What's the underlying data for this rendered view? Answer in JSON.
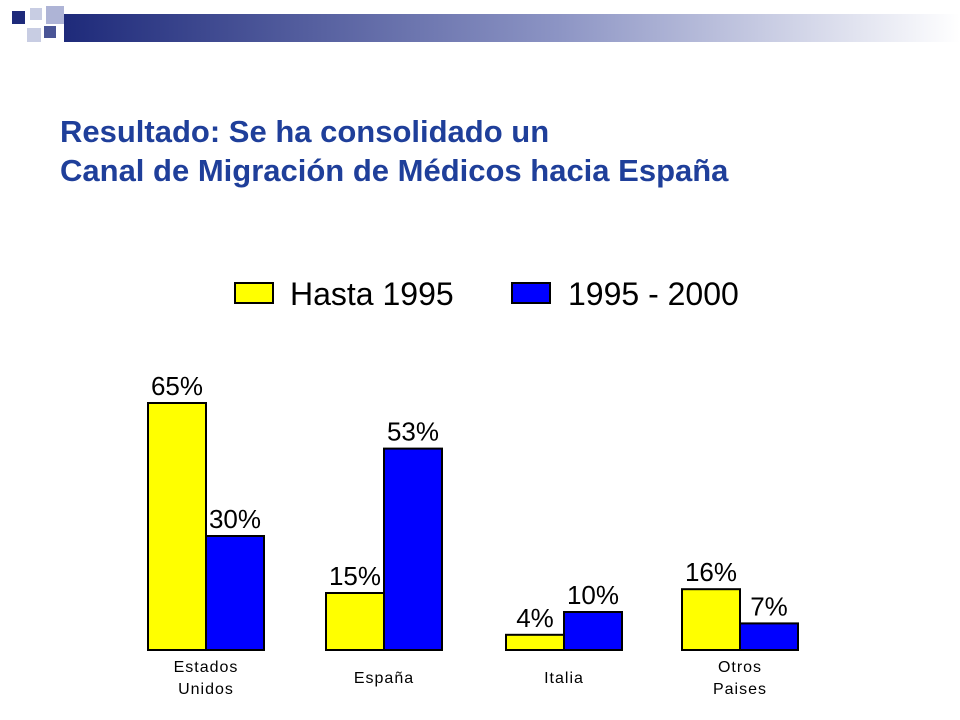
{
  "slide": {
    "title_line1": "Resultado: Se ha consolidado un",
    "title_line2": "Canal de Migración de Médicos hacia España"
  },
  "colors": {
    "title": "#1F3F9A",
    "decor_dark": "#1E2A7A",
    "decor_light": "#C8CDE3",
    "series_1": "#FFFF00",
    "series_2": "#0000FF"
  },
  "chart_data": {
    "type": "bar",
    "categories": [
      [
        "Estados",
        "Unidos"
      ],
      [
        "España"
      ],
      [
        "Italia"
      ],
      [
        "Otros",
        "Paises"
      ]
    ],
    "series": [
      {
        "name": "Hasta 1995",
        "values": [
          65,
          15,
          4,
          16
        ],
        "labels": [
          "65%",
          "15%",
          "4%",
          "16%"
        ],
        "color": "#FFFF00"
      },
      {
        "name": "1995 - 2000",
        "values": [
          30,
          53,
          10,
          7
        ],
        "labels": [
          "30%",
          "53%",
          "10%",
          "7%"
        ],
        "color": "#0000FF"
      }
    ],
    "ylim": [
      0,
      65
    ],
    "grid": false,
    "axes_visible": false,
    "legend": "top"
  }
}
